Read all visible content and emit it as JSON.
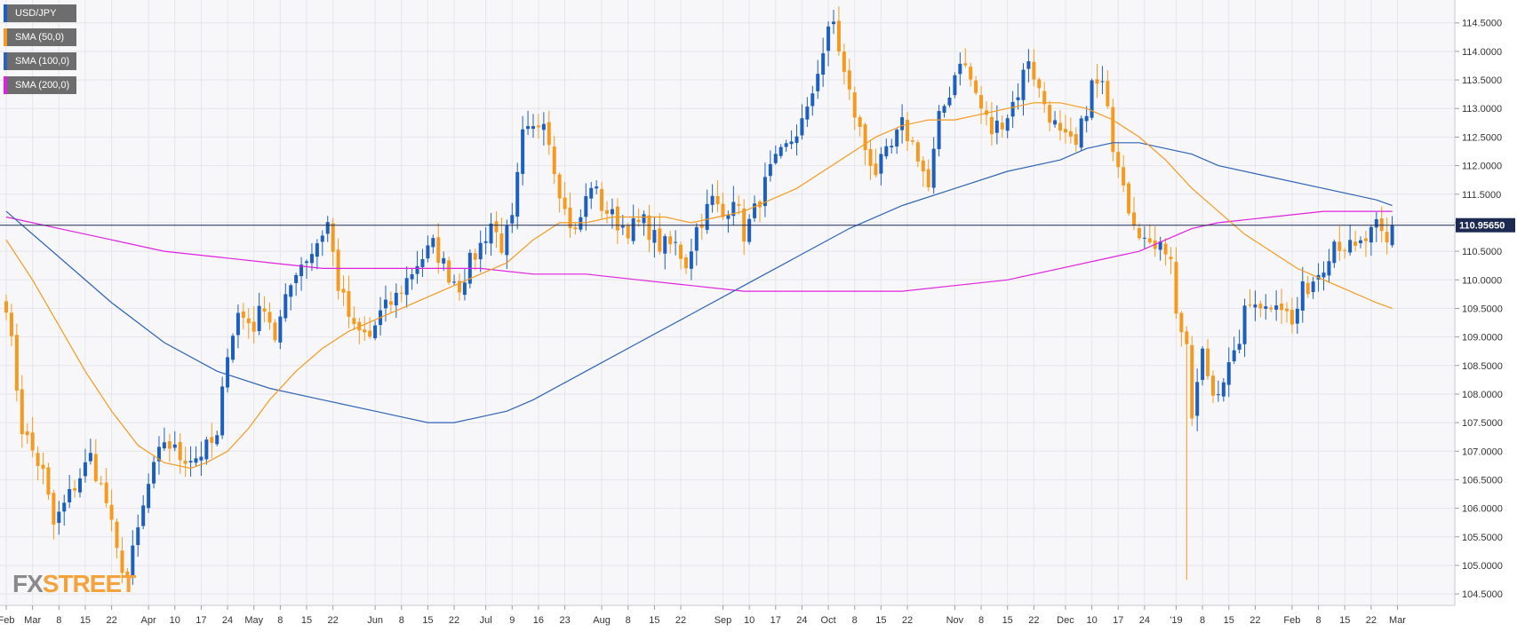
{
  "legend": [
    {
      "label": "USD/JPY",
      "color": "#1d5fbf"
    },
    {
      "label": "SMA (50,0)",
      "color": "#f59a1f"
    },
    {
      "label": "SMA (100,0)",
      "color": "#2d63b5"
    },
    {
      "label": "SMA (200,0)",
      "color": "#e020e0"
    }
  ],
  "watermark": {
    "part1": "FX",
    "part2": "STREET"
  },
  "price_tag": "110.95650",
  "colors": {
    "up": "#1d5fbf",
    "down": "#f59a1f",
    "sma50": "#f59a1f",
    "sma100": "#2d63b5",
    "sma200": "#e020e0",
    "current_line": "#1c2a52",
    "grid": "#e6e6ea",
    "plot_bg": "#f7f7f9",
    "price_tag_bg": "#1c2a52"
  },
  "chart_data": {
    "type": "candlestick",
    "instrument": "USD/JPY",
    "timeframe": "daily",
    "ylim": [
      104.3,
      114.9
    ],
    "yticks": [
      104.5,
      105.0,
      105.5,
      106.0,
      106.5,
      107.0,
      107.5,
      108.0,
      108.5,
      109.0,
      109.5,
      110.0,
      110.5,
      111.0,
      111.5,
      112.0,
      112.5,
      113.0,
      113.5,
      114.0,
      114.5
    ],
    "ytick_labels": [
      "104.5000",
      "105.0000",
      "105.5000",
      "106.0000",
      "106.5000",
      "107.0000",
      "107.5000",
      "108.0000",
      "108.5000",
      "109.0000",
      "109.5000",
      "110.0000",
      "110.5000",
      "111.0000",
      "111.5000",
      "112.0000",
      "112.5000",
      "113.0000",
      "113.5000",
      "114.0000",
      "114.5000"
    ],
    "n_bars": 264,
    "xticks": [
      {
        "label": "Feb",
        "bar": 0
      },
      {
        "label": "Mar",
        "bar": 5
      },
      {
        "label": "8",
        "bar": 10
      },
      {
        "label": "15",
        "bar": 15
      },
      {
        "label": "22",
        "bar": 20
      },
      {
        "label": "Apr",
        "bar": 27
      },
      {
        "label": "10",
        "bar": 32
      },
      {
        "label": "17",
        "bar": 37
      },
      {
        "label": "24",
        "bar": 42
      },
      {
        "label": "May",
        "bar": 47
      },
      {
        "label": "8",
        "bar": 52
      },
      {
        "label": "15",
        "bar": 57
      },
      {
        "label": "22",
        "bar": 62
      },
      {
        "label": "Jun",
        "bar": 70
      },
      {
        "label": "8",
        "bar": 75
      },
      {
        "label": "15",
        "bar": 80
      },
      {
        "label": "22",
        "bar": 85
      },
      {
        "label": "Jul",
        "bar": 91
      },
      {
        "label": "9",
        "bar": 96
      },
      {
        "label": "16",
        "bar": 101
      },
      {
        "label": "23",
        "bar": 106
      },
      {
        "label": "Aug",
        "bar": 113
      },
      {
        "label": "8",
        "bar": 118
      },
      {
        "label": "15",
        "bar": 123
      },
      {
        "label": "22",
        "bar": 128
      },
      {
        "label": "Sep",
        "bar": 136
      },
      {
        "label": "10",
        "bar": 141
      },
      {
        "label": "17",
        "bar": 146
      },
      {
        "label": "24",
        "bar": 151
      },
      {
        "label": "Oct",
        "bar": 156
      },
      {
        "label": "8",
        "bar": 161
      },
      {
        "label": "15",
        "bar": 166
      },
      {
        "label": "22",
        "bar": 171
      },
      {
        "label": "Nov",
        "bar": 180
      },
      {
        "label": "8",
        "bar": 185
      },
      {
        "label": "15",
        "bar": 190
      },
      {
        "label": "22",
        "bar": 195
      },
      {
        "label": "Dec",
        "bar": 201
      },
      {
        "label": "10",
        "bar": 206
      },
      {
        "label": "17",
        "bar": 211
      },
      {
        "label": "24",
        "bar": 216
      },
      {
        "label": "'19",
        "bar": 222
      },
      {
        "label": "8",
        "bar": 227
      },
      {
        "label": "15",
        "bar": 232
      },
      {
        "label": "22",
        "bar": 237
      },
      {
        "label": "Feb",
        "bar": 244
      },
      {
        "label": "8",
        "bar": 249
      },
      {
        "label": "15",
        "bar": 254
      },
      {
        "label": "22",
        "bar": 259
      },
      {
        "label": "Mar",
        "bar": 264
      }
    ],
    "close_anchors": [
      [
        0,
        109.6
      ],
      [
        3,
        107.4
      ],
      [
        7,
        106.6
      ],
      [
        9,
        105.7
      ],
      [
        13,
        106.4
      ],
      [
        16,
        106.9
      ],
      [
        19,
        106.1
      ],
      [
        21,
        105.2
      ],
      [
        23,
        104.8
      ],
      [
        27,
        106.4
      ],
      [
        30,
        107.2
      ],
      [
        33,
        106.9
      ],
      [
        36,
        106.9
      ],
      [
        40,
        107.2
      ],
      [
        42,
        108.8
      ],
      [
        44,
        109.4
      ],
      [
        47,
        109.2
      ],
      [
        49,
        109.6
      ],
      [
        51,
        109.0
      ],
      [
        55,
        110.2
      ],
      [
        58,
        110.5
      ],
      [
        61,
        111.0
      ],
      [
        63,
        109.9
      ],
      [
        66,
        109.1
      ],
      [
        69,
        109.0
      ],
      [
        71,
        109.4
      ],
      [
        74,
        109.7
      ],
      [
        78,
        110.3
      ],
      [
        81,
        110.6
      ],
      [
        84,
        110.1
      ],
      [
        86,
        109.9
      ],
      [
        88,
        110.3
      ],
      [
        90,
        110.6
      ],
      [
        92,
        111.0
      ],
      [
        94,
        110.6
      ],
      [
        96,
        111.0
      ],
      [
        98,
        112.5
      ],
      [
        100,
        112.6
      ],
      [
        102,
        112.9
      ],
      [
        104,
        112.0
      ],
      [
        106,
        111.2
      ],
      [
        108,
        110.8
      ],
      [
        111,
        111.7
      ],
      [
        113,
        111.3
      ],
      [
        116,
        111.0
      ],
      [
        118,
        110.9
      ],
      [
        121,
        111.0
      ],
      [
        124,
        110.6
      ],
      [
        127,
        110.6
      ],
      [
        129,
        110.3
      ],
      [
        131,
        110.9
      ],
      [
        134,
        111.4
      ],
      [
        136,
        111.1
      ],
      [
        138,
        111.5
      ],
      [
        140,
        110.8
      ],
      [
        142,
        111.2
      ],
      [
        145,
        111.9
      ],
      [
        148,
        112.3
      ],
      [
        150,
        112.6
      ],
      [
        152,
        112.9
      ],
      [
        154,
        113.7
      ],
      [
        156,
        114.3
      ],
      [
        157,
        114.5
      ],
      [
        159,
        113.6
      ],
      [
        161,
        112.9
      ],
      [
        163,
        112.3
      ],
      [
        165,
        111.9
      ],
      [
        168,
        112.3
      ],
      [
        170,
        112.7
      ],
      [
        173,
        112.2
      ],
      [
        175,
        111.6
      ],
      [
        177,
        112.8
      ],
      [
        179,
        113.3
      ],
      [
        181,
        113.9
      ],
      [
        183,
        113.5
      ],
      [
        185,
        113.0
      ],
      [
        187,
        112.6
      ],
      [
        190,
        112.9
      ],
      [
        192,
        113.3
      ],
      [
        194,
        113.9
      ],
      [
        196,
        113.3
      ],
      [
        198,
        112.9
      ],
      [
        200,
        112.5
      ],
      [
        203,
        112.3
      ],
      [
        206,
        113.4
      ],
      [
        208,
        113.4
      ],
      [
        210,
        112.4
      ],
      [
        212,
        111.8
      ],
      [
        213,
        111.3
      ],
      [
        215,
        110.9
      ],
      [
        217,
        110.5
      ],
      [
        219,
        110.8
      ],
      [
        221,
        110.3
      ],
      [
        222,
        109.5
      ],
      [
        224,
        108.7
      ],
      [
        225,
        107.6
      ],
      [
        227,
        108.7
      ],
      [
        229,
        108.0
      ],
      [
        231,
        108.3
      ],
      [
        233,
        108.6
      ],
      [
        235,
        109.4
      ],
      [
        237,
        109.7
      ],
      [
        239,
        109.5
      ],
      [
        241,
        109.7
      ],
      [
        243,
        109.4
      ],
      [
        244,
        109.2
      ],
      [
        246,
        109.8
      ],
      [
        248,
        110.0
      ],
      [
        250,
        110.3
      ],
      [
        252,
        110.7
      ],
      [
        254,
        110.6
      ],
      [
        256,
        110.5
      ],
      [
        258,
        110.7
      ],
      [
        260,
        110.9
      ],
      [
        262,
        110.6
      ],
      [
        263,
        110.96
      ]
    ],
    "series": [
      {
        "name": "SMA (50,0)"
      },
      {
        "name": "SMA (100,0)"
      },
      {
        "name": "SMA (200,0)"
      }
    ],
    "sma_paths": {
      "sma50": [
        [
          0,
          110.7
        ],
        [
          5,
          110.0
        ],
        [
          10,
          109.2
        ],
        [
          15,
          108.4
        ],
        [
          20,
          107.7
        ],
        [
          25,
          107.1
        ],
        [
          30,
          106.8
        ],
        [
          35,
          106.7
        ],
        [
          38,
          106.8
        ],
        [
          42,
          107.0
        ],
        [
          46,
          107.4
        ],
        [
          50,
          107.9
        ],
        [
          55,
          108.4
        ],
        [
          60,
          108.8
        ],
        [
          65,
          109.1
        ],
        [
          70,
          109.3
        ],
        [
          75,
          109.5
        ],
        [
          80,
          109.7
        ],
        [
          85,
          109.9
        ],
        [
          90,
          110.1
        ],
        [
          95,
          110.3
        ],
        [
          100,
          110.7
        ],
        [
          105,
          111.0
        ],
        [
          110,
          111.0
        ],
        [
          115,
          111.1
        ],
        [
          120,
          111.1
        ],
        [
          125,
          111.1
        ],
        [
          130,
          111.0
        ],
        [
          135,
          111.1
        ],
        [
          140,
          111.2
        ],
        [
          145,
          111.4
        ],
        [
          150,
          111.6
        ],
        [
          155,
          111.9
        ],
        [
          160,
          112.2
        ],
        [
          165,
          112.5
        ],
        [
          170,
          112.7
        ],
        [
          175,
          112.8
        ],
        [
          180,
          112.8
        ],
        [
          185,
          112.9
        ],
        [
          190,
          113.0
        ],
        [
          195,
          113.1
        ],
        [
          200,
          113.1
        ],
        [
          205,
          113.0
        ],
        [
          210,
          112.8
        ],
        [
          215,
          112.5
        ],
        [
          220,
          112.1
        ],
        [
          225,
          111.6
        ],
        [
          230,
          111.2
        ],
        [
          235,
          110.8
        ],
        [
          240,
          110.5
        ],
        [
          245,
          110.2
        ],
        [
          250,
          110.0
        ],
        [
          255,
          109.8
        ],
        [
          260,
          109.6
        ],
        [
          263,
          109.5
        ]
      ],
      "sma100": [
        [
          0,
          111.2
        ],
        [
          10,
          110.4
        ],
        [
          20,
          109.6
        ],
        [
          30,
          108.9
        ],
        [
          40,
          108.4
        ],
        [
          50,
          108.1
        ],
        [
          60,
          107.9
        ],
        [
          70,
          107.7
        ],
        [
          75,
          107.6
        ],
        [
          80,
          107.5
        ],
        [
          85,
          107.5
        ],
        [
          90,
          107.6
        ],
        [
          95,
          107.7
        ],
        [
          100,
          107.9
        ],
        [
          110,
          108.4
        ],
        [
          120,
          108.9
        ],
        [
          130,
          109.4
        ],
        [
          140,
          109.9
        ],
        [
          150,
          110.4
        ],
        [
          160,
          110.9
        ],
        [
          170,
          111.3
        ],
        [
          180,
          111.6
        ],
        [
          190,
          111.9
        ],
        [
          200,
          112.1
        ],
        [
          205,
          112.3
        ],
        [
          210,
          112.4
        ],
        [
          215,
          112.4
        ],
        [
          220,
          112.3
        ],
        [
          225,
          112.2
        ],
        [
          230,
          112.0
        ],
        [
          240,
          111.8
        ],
        [
          250,
          111.6
        ],
        [
          260,
          111.4
        ],
        [
          263,
          111.3
        ]
      ],
      "sma200": [
        [
          0,
          111.1
        ],
        [
          10,
          110.9
        ],
        [
          20,
          110.7
        ],
        [
          30,
          110.5
        ],
        [
          40,
          110.4
        ],
        [
          50,
          110.3
        ],
        [
          60,
          110.2
        ],
        [
          70,
          110.2
        ],
        [
          80,
          110.2
        ],
        [
          90,
          110.2
        ],
        [
          100,
          110.1
        ],
        [
          110,
          110.1
        ],
        [
          120,
          110.0
        ],
        [
          130,
          109.9
        ],
        [
          140,
          109.8
        ],
        [
          150,
          109.8
        ],
        [
          160,
          109.8
        ],
        [
          170,
          109.8
        ],
        [
          180,
          109.9
        ],
        [
          190,
          110.0
        ],
        [
          200,
          110.2
        ],
        [
          210,
          110.4
        ],
        [
          215,
          110.5
        ],
        [
          220,
          110.7
        ],
        [
          225,
          110.9
        ],
        [
          230,
          111.0
        ],
        [
          240,
          111.1
        ],
        [
          250,
          111.2
        ],
        [
          260,
          111.2
        ],
        [
          263,
          111.2
        ]
      ]
    },
    "spike": {
      "bar": 224,
      "low": 104.75
    },
    "last_price": 110.9565
  }
}
